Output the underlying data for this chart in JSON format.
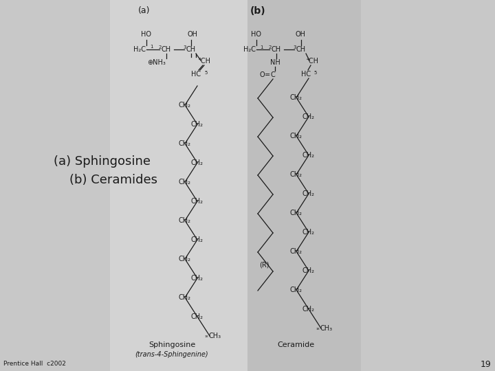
{
  "bg_color": "#c8c8c8",
  "left_panel_color": "#d3d3d3",
  "right_panel_color": "#bebebe",
  "left_label": "(a)",
  "right_label": "(b)",
  "left_title": "Sphingosine",
  "left_subtitle": "(trans-4-Sphingenine)",
  "right_title": "Ceramide",
  "side_text_line1": "(a) Sphingosine",
  "side_text_line2": "    (b) Ceramides",
  "footer_left": "Prentice Hall  c2002",
  "footer_page": "19",
  "text_color": "#1a1a1a"
}
